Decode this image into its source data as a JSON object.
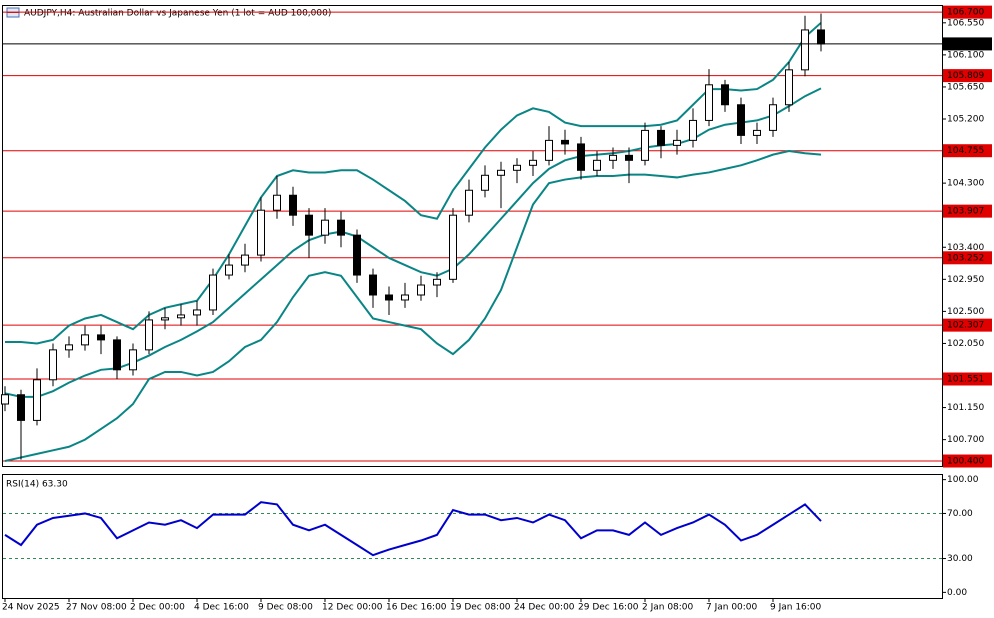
{
  "chart_data": {
    "type": "candlestick",
    "title": "AUDJPY,H4:  Australian Dollar vs Japanese Yen (1 lot = AUD 100,000)",
    "categories": [
      "24 Nov 2025",
      null,
      null,
      null,
      "27 Nov 08:00",
      null,
      null,
      null,
      "2 Dec 00:00",
      null,
      null,
      null,
      "4 Dec 16:00",
      null,
      null,
      null,
      "9 Dec 08:00",
      null,
      null,
      null,
      "12 Dec 00:00",
      null,
      null,
      null,
      "16 Dec 16:00",
      null,
      null,
      null,
      "19 Dec 08:00",
      null,
      null,
      null,
      "24 Dec 00:00",
      null,
      null,
      null,
      "29 Dec 16:00",
      null,
      null,
      null,
      "2 Jan 08:00",
      null,
      null,
      null,
      "7 Jan 00:00",
      null,
      null,
      null,
      "9 Jan 16:00",
      null,
      null,
      null
    ],
    "open": [
      101.2,
      101.33,
      100.97,
      101.54,
      101.96,
      102.03,
      102.17,
      102.1,
      101.68,
      101.96,
      102.38,
      102.41,
      102.45,
      102.52,
      103.01,
      103.15,
      103.29,
      103.92,
      104.13,
      103.85,
      103.57,
      103.78,
      103.57,
      103.01,
      102.73,
      102.66,
      102.73,
      102.87,
      102.95,
      103.85,
      104.2,
      104.41,
      104.48,
      104.55,
      104.62,
      104.9,
      104.85,
      104.48,
      104.62,
      104.69,
      104.62,
      105.04,
      104.83,
      104.9,
      105.18,
      105.68,
      105.4,
      104.97,
      105.04,
      105.4,
      105.89,
      106.45
    ],
    "high": [
      101.45,
      101.4,
      101.7,
      102.05,
      102.15,
      102.3,
      102.3,
      102.15,
      102.05,
      102.5,
      102.55,
      102.6,
      102.65,
      103.1,
      103.3,
      103.45,
      104.1,
      104.4,
      104.25,
      103.95,
      103.95,
      103.9,
      103.65,
      103.1,
      102.85,
      102.9,
      103.0,
      103.05,
      103.95,
      104.35,
      104.55,
      104.6,
      104.65,
      104.75,
      105.1,
      105.05,
      104.95,
      104.75,
      104.8,
      104.8,
      105.15,
      105.1,
      105.05,
      105.35,
      105.9,
      105.75,
      105.5,
      105.15,
      105.5,
      106.0,
      106.65,
      106.68
    ],
    "low": [
      101.1,
      100.42,
      100.9,
      101.45,
      101.85,
      101.95,
      101.9,
      101.55,
      101.6,
      101.9,
      102.25,
      102.3,
      102.3,
      102.45,
      102.95,
      103.05,
      103.2,
      103.8,
      103.7,
      103.25,
      103.45,
      103.4,
      102.9,
      102.55,
      102.45,
      102.55,
      102.65,
      102.7,
      102.9,
      103.75,
      104.1,
      103.95,
      104.3,
      104.4,
      104.55,
      104.7,
      104.35,
      104.4,
      104.5,
      104.3,
      104.55,
      104.65,
      104.7,
      104.8,
      105.1,
      105.3,
      104.85,
      104.85,
      104.95,
      105.3,
      105.8,
      106.15
    ],
    "close": [
      101.33,
      100.97,
      101.54,
      101.96,
      102.03,
      102.17,
      102.1,
      101.68,
      101.96,
      102.38,
      102.41,
      102.45,
      102.52,
      103.01,
      103.15,
      103.29,
      103.92,
      104.13,
      103.85,
      103.57,
      103.78,
      103.57,
      103.01,
      102.73,
      102.66,
      102.73,
      102.87,
      102.95,
      103.85,
      104.2,
      104.41,
      104.48,
      104.55,
      104.62,
      104.9,
      104.85,
      104.48,
      104.62,
      104.69,
      104.62,
      105.04,
      104.83,
      104.9,
      105.18,
      105.68,
      105.4,
      104.97,
      105.04,
      105.4,
      105.89,
      106.45,
      106.254
    ],
    "ylim": [
      100.33,
      106.8
    ],
    "yticks": [
      {
        "value": 106.55,
        "label": "106.550"
      },
      {
        "value": 106.1,
        "label": "106.100"
      },
      {
        "value": 105.65,
        "label": "105.650"
      },
      {
        "value": 105.2,
        "label": "105.200"
      },
      {
        "value": 104.3,
        "label": "104.300"
      },
      {
        "value": 103.4,
        "label": "103.400"
      },
      {
        "value": 102.95,
        "label": "102.950"
      },
      {
        "value": 102.5,
        "label": "102.500"
      },
      {
        "value": 102.05,
        "label": "102.050"
      },
      {
        "value": 101.15,
        "label": "101.150"
      },
      {
        "value": 100.7,
        "label": "100.700"
      }
    ],
    "levels": [
      {
        "value": 106.7,
        "label": "106.700"
      },
      {
        "value": 105.809,
        "label": "105.809"
      },
      {
        "value": 104.755,
        "label": "104.755"
      },
      {
        "value": 103.907,
        "label": "103.907"
      },
      {
        "value": 103.252,
        "label": "103.252"
      },
      {
        "value": 102.307,
        "label": "102.307"
      },
      {
        "value": 101.551,
        "label": "101.551"
      },
      {
        "value": 100.4,
        "label": "100.400"
      }
    ],
    "level_color": "#e00000",
    "last_price": {
      "value": 106.254,
      "label": "106.254"
    },
    "bull_color": "#ffffff",
    "bear_color": "#000000",
    "bands": {
      "color": "#0a8585",
      "upper": [
        102.07,
        102.07,
        102.05,
        102.1,
        102.3,
        102.4,
        102.45,
        102.35,
        102.25,
        102.45,
        102.55,
        102.6,
        102.65,
        102.95,
        103.3,
        103.7,
        104.1,
        104.4,
        104.48,
        104.45,
        104.45,
        104.48,
        104.48,
        104.35,
        104.2,
        104.05,
        103.85,
        103.8,
        104.2,
        104.5,
        104.8,
        105.05,
        105.25,
        105.35,
        105.3,
        105.15,
        105.1,
        105.1,
        105.1,
        105.1,
        105.1,
        105.12,
        105.18,
        105.4,
        105.62,
        105.62,
        105.6,
        105.62,
        105.75,
        106.0,
        106.35,
        106.55
      ],
      "middle": [
        101.35,
        101.3,
        101.3,
        101.38,
        101.5,
        101.6,
        101.68,
        101.7,
        101.78,
        101.88,
        102.0,
        102.1,
        102.22,
        102.35,
        102.55,
        102.75,
        102.95,
        103.15,
        103.35,
        103.5,
        103.58,
        103.62,
        103.55,
        103.4,
        103.25,
        103.15,
        103.05,
        103.0,
        103.1,
        103.3,
        103.55,
        103.8,
        104.05,
        104.3,
        104.5,
        104.62,
        104.68,
        104.7,
        104.72,
        104.75,
        104.8,
        104.83,
        104.85,
        104.92,
        105.05,
        105.12,
        105.15,
        105.18,
        105.25,
        105.38,
        105.52,
        105.63
      ],
      "lower": [
        100.4,
        100.45,
        100.5,
        100.55,
        100.6,
        100.7,
        100.85,
        101.0,
        101.2,
        101.55,
        101.65,
        101.65,
        101.6,
        101.65,
        101.8,
        102.0,
        102.1,
        102.35,
        102.7,
        103.0,
        103.05,
        103.0,
        102.7,
        102.4,
        102.35,
        102.3,
        102.25,
        102.05,
        101.9,
        102.1,
        102.4,
        102.8,
        103.4,
        104.0,
        104.3,
        104.35,
        104.38,
        104.4,
        104.4,
        104.42,
        104.42,
        104.4,
        104.38,
        104.42,
        104.45,
        104.5,
        104.55,
        104.62,
        104.7,
        104.75,
        104.72,
        104.7
      ]
    },
    "rsi": {
      "title": "RSI(14) 63.30",
      "color": "#0000cd",
      "values": [
        51,
        42,
        60,
        66,
        68,
        70,
        66,
        48,
        55,
        62,
        60,
        64,
        57,
        69,
        69,
        69,
        80,
        78,
        60,
        55,
        60,
        51,
        42,
        33,
        38,
        42,
        46,
        51,
        73,
        69,
        69,
        64,
        66,
        62,
        69,
        64,
        48,
        55,
        55,
        51,
        62,
        51,
        57,
        62,
        69,
        60,
        46,
        51,
        60,
        69,
        78,
        63.3
      ],
      "ylim": [
        -5,
        105
      ],
      "yticks": [
        {
          "value": 100,
          "label": "100.00"
        },
        {
          "value": 70,
          "label": "70.00"
        },
        {
          "value": 30,
          "label": "30.00"
        },
        {
          "value": 0,
          "label": "0.00"
        }
      ],
      "levels": [
        70,
        30
      ],
      "level_color": "#2e8b57"
    }
  }
}
